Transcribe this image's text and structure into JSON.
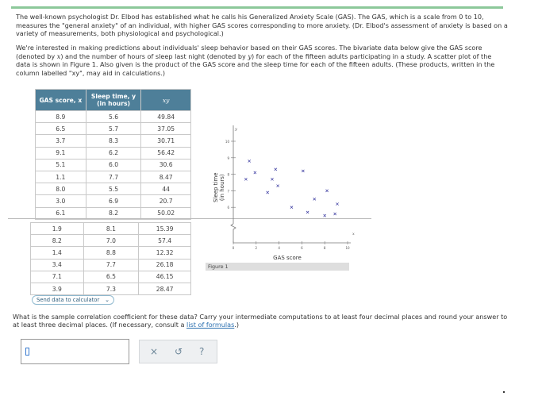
{
  "intro": {
    "p1": "The well-known psychologist Dr. Elbod has established what he calls his Generalized Anxiety Scale (GAS). The GAS, which is a scale from 0 to 10, measures the \"general anxiety\" of an individual, with higher GAS scores corresponding to more anxiety. (Dr. Elbod's assessment of anxiety is based on a variety of measurements, both physiological and psychological.)",
    "p2a": "We're interested in making predictions about individuals' sleep behavior based on their GAS scores. The bivariate data below give the GAS score (denoted by ",
    "var_x": "x",
    "p2b": ") and the number of hours of sleep last night (denoted by ",
    "var_y": "y",
    "p2c": ") for each of the fifteen adults participating in a study. A scatter plot of the data is shown in Figure 1. Also given is the product of the GAS score and the sleep time for each of the fifteen adults. (These products, written in the column labelled \"xy\", may aid in calculations.)"
  },
  "table": {
    "headers": [
      "GAS score, x",
      "Sleep time, y",
      "(in hours)",
      "xy"
    ],
    "rows": [
      [
        "8.9",
        "5.6",
        "49.84"
      ],
      [
        "6.5",
        "5.7",
        "37.05"
      ],
      [
        "3.7",
        "8.3",
        "30.71"
      ],
      [
        "9.1",
        "6.2",
        "56.42"
      ],
      [
        "5.1",
        "6.0",
        "30.6"
      ],
      [
        "1.1",
        "7.7",
        "8.47"
      ],
      [
        "8.0",
        "5.5",
        "44"
      ],
      [
        "3.0",
        "6.9",
        "20.7"
      ],
      [
        "6.1",
        "8.2",
        "50.02"
      ],
      [
        "1.9",
        "8.1",
        "15.39"
      ],
      [
        "8.2",
        "7.0",
        "57.4"
      ],
      [
        "1.4",
        "8.8",
        "12.32"
      ],
      [
        "3.4",
        "7.7",
        "26.18"
      ],
      [
        "7.1",
        "6.5",
        "46.15"
      ],
      [
        "3.9",
        "7.3",
        "28.47"
      ]
    ]
  },
  "calc_button": {
    "label": "Send data to calculator"
  },
  "chart_data": {
    "type": "scatter",
    "xlabel": "GAS score",
    "ylabel": [
      "Sleep time",
      "(in hours)"
    ],
    "y_var": "y",
    "x_var": "x",
    "xlim": [
      0,
      10
    ],
    "ylim": [
      0,
      10
    ],
    "x_ticks": [
      "0",
      "2",
      "4",
      "6",
      "8",
      "10"
    ],
    "y_ticks": [
      "6",
      "7",
      "8",
      "9",
      "10"
    ],
    "points": [
      [
        8.9,
        5.6
      ],
      [
        6.5,
        5.7
      ],
      [
        3.7,
        8.3
      ],
      [
        9.1,
        6.2
      ],
      [
        5.1,
        6.0
      ],
      [
        1.1,
        7.7
      ],
      [
        8.0,
        5.5
      ],
      [
        3.0,
        6.9
      ],
      [
        6.1,
        8.2
      ],
      [
        1.9,
        8.1
      ],
      [
        8.2,
        7.0
      ],
      [
        1.4,
        8.8
      ],
      [
        3.4,
        7.7
      ],
      [
        7.1,
        6.5
      ],
      [
        3.9,
        7.3
      ]
    ],
    "marker": "x",
    "color": "#3a3aa0",
    "caption": "Figure 1"
  },
  "question": {
    "text": "What is the sample correlation coefficient for these data? Carry your intermediate computations to at least four decimal places and round your answer to at least three decimal places. (If necessary, consult a ",
    "link": "list of formulas",
    "end": ".)"
  },
  "tools": {
    "clear": "×",
    "undo": "↺",
    "help": "?"
  }
}
